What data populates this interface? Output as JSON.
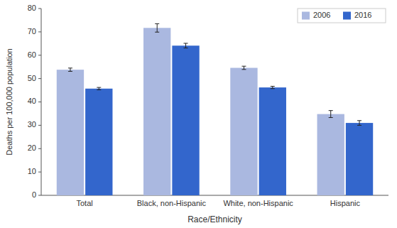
{
  "chart_data": {
    "type": "bar",
    "categories": [
      "Total",
      "Black, non-Hispanic",
      "White, non-Hispanic",
      "Hispanic"
    ],
    "series": [
      {
        "name": "2006",
        "color": "#aab8e0",
        "values": [
          53.8,
          71.7,
          54.6,
          34.8
        ],
        "errors": [
          0.7,
          1.8,
          0.7,
          1.5
        ]
      },
      {
        "name": "2016",
        "color": "#3366cc",
        "values": [
          45.7,
          64.1,
          46.2,
          31.0
        ],
        "errors": [
          0.5,
          1.0,
          0.5,
          1.0
        ]
      }
    ],
    "xlabel": "Race/Ethnicity",
    "ylabel": "Deaths per 100,000 population",
    "ylim": [
      0,
      80
    ],
    "yticks": [
      0,
      10,
      20,
      30,
      40,
      50,
      60,
      70,
      80
    ],
    "grid": false,
    "legend": "upper right"
  }
}
